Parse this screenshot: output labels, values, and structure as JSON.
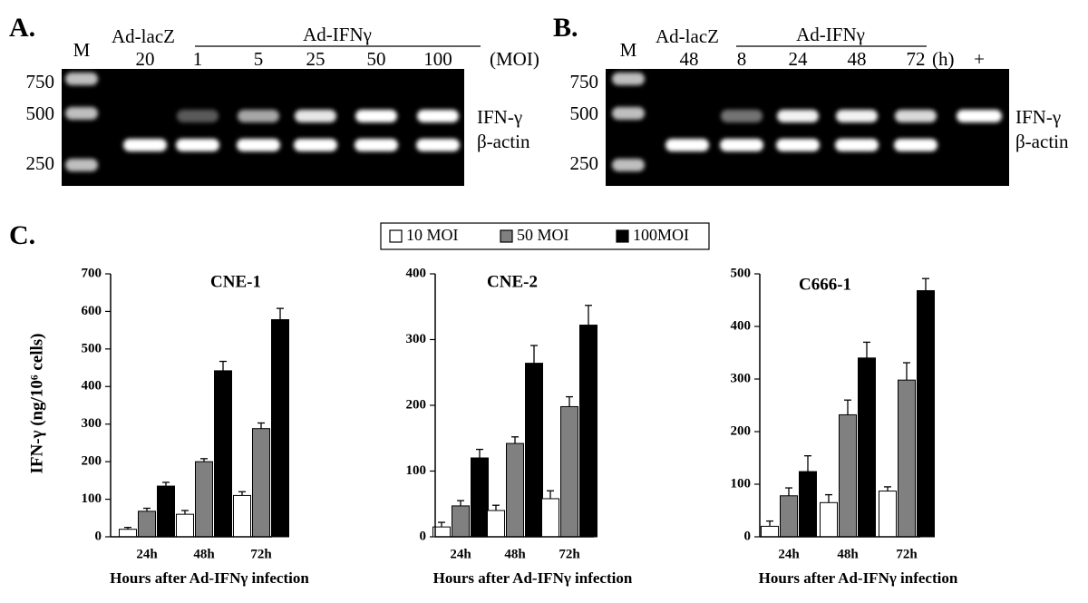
{
  "panels": {
    "a": {
      "label": "A.",
      "marker": "M",
      "control": "Ad-lacZ",
      "control_lane": "20",
      "treatment": "Ad-IFNγ",
      "lanes": [
        "1",
        "5",
        "25",
        "50",
        "100"
      ],
      "unit": "(MOI)",
      "ladder": [
        "750",
        "500",
        "250"
      ],
      "bands": [
        "IFN-γ",
        "β-actin"
      ]
    },
    "b": {
      "label": "B.",
      "marker": "M",
      "control": "Ad-lacZ",
      "control_lane": "48",
      "treatment": "Ad-IFNγ",
      "lanes": [
        "8",
        "24",
        "48",
        "72"
      ],
      "unit": "(h)",
      "positive": "+",
      "ladder": [
        "750",
        "500",
        "250"
      ],
      "bands": [
        "IFN-γ",
        "β-actin"
      ]
    }
  },
  "figure_c": {
    "label": "C.",
    "y_label": "IFN-γ (ng/10⁶ cells)",
    "legend": [
      {
        "name": "10 MOI",
        "color": "#ffffff"
      },
      {
        "name": "50 MOI",
        "color": "#808080"
      },
      {
        "name": "100MOI",
        "color": "#000000"
      }
    ]
  },
  "chart_data": [
    {
      "type": "bar",
      "title": "CNE-1",
      "categories": [
        "24h",
        "48h",
        "72h"
      ],
      "x_label": "Hours after Ad-IFNγ infection",
      "ylim": [
        0,
        700
      ],
      "yticks": [
        0,
        100,
        200,
        300,
        400,
        500,
        600,
        700
      ],
      "series": [
        {
          "values": [
            20,
            60,
            110
          ],
          "errors": [
            5,
            10,
            10
          ]
        },
        {
          "values": [
            68,
            200,
            288
          ],
          "errors": [
            8,
            8,
            15
          ]
        },
        {
          "values": [
            135,
            442,
            578
          ],
          "errors": [
            10,
            25,
            30
          ]
        }
      ]
    },
    {
      "type": "bar",
      "title": "CNE-2",
      "categories": [
        "24h",
        "48h",
        "72h"
      ],
      "x_label": "Hours after Ad-IFNγ infection",
      "ylim": [
        0,
        400
      ],
      "yticks": [
        0,
        100,
        200,
        300,
        400
      ],
      "series": [
        {
          "values": [
            15,
            40,
            58
          ],
          "errors": [
            7,
            8,
            12
          ]
        },
        {
          "values": [
            47,
            142,
            198
          ],
          "errors": [
            8,
            10,
            15
          ]
        },
        {
          "values": [
            120,
            264,
            322
          ],
          "errors": [
            13,
            27,
            30
          ]
        }
      ]
    },
    {
      "type": "bar",
      "title": "C666-1",
      "categories": [
        "24h",
        "48h",
        "72h"
      ],
      "x_label": "Hours after Ad-IFNγ infection",
      "ylim": [
        0,
        500
      ],
      "yticks": [
        0,
        100,
        200,
        300,
        400,
        500
      ],
      "series": [
        {
          "values": [
            20,
            65,
            87
          ],
          "errors": [
            10,
            15,
            8
          ]
        },
        {
          "values": [
            78,
            232,
            298
          ],
          "errors": [
            15,
            28,
            33
          ]
        },
        {
          "values": [
            124,
            340,
            468
          ],
          "errors": [
            30,
            30,
            23
          ]
        }
      ]
    }
  ]
}
